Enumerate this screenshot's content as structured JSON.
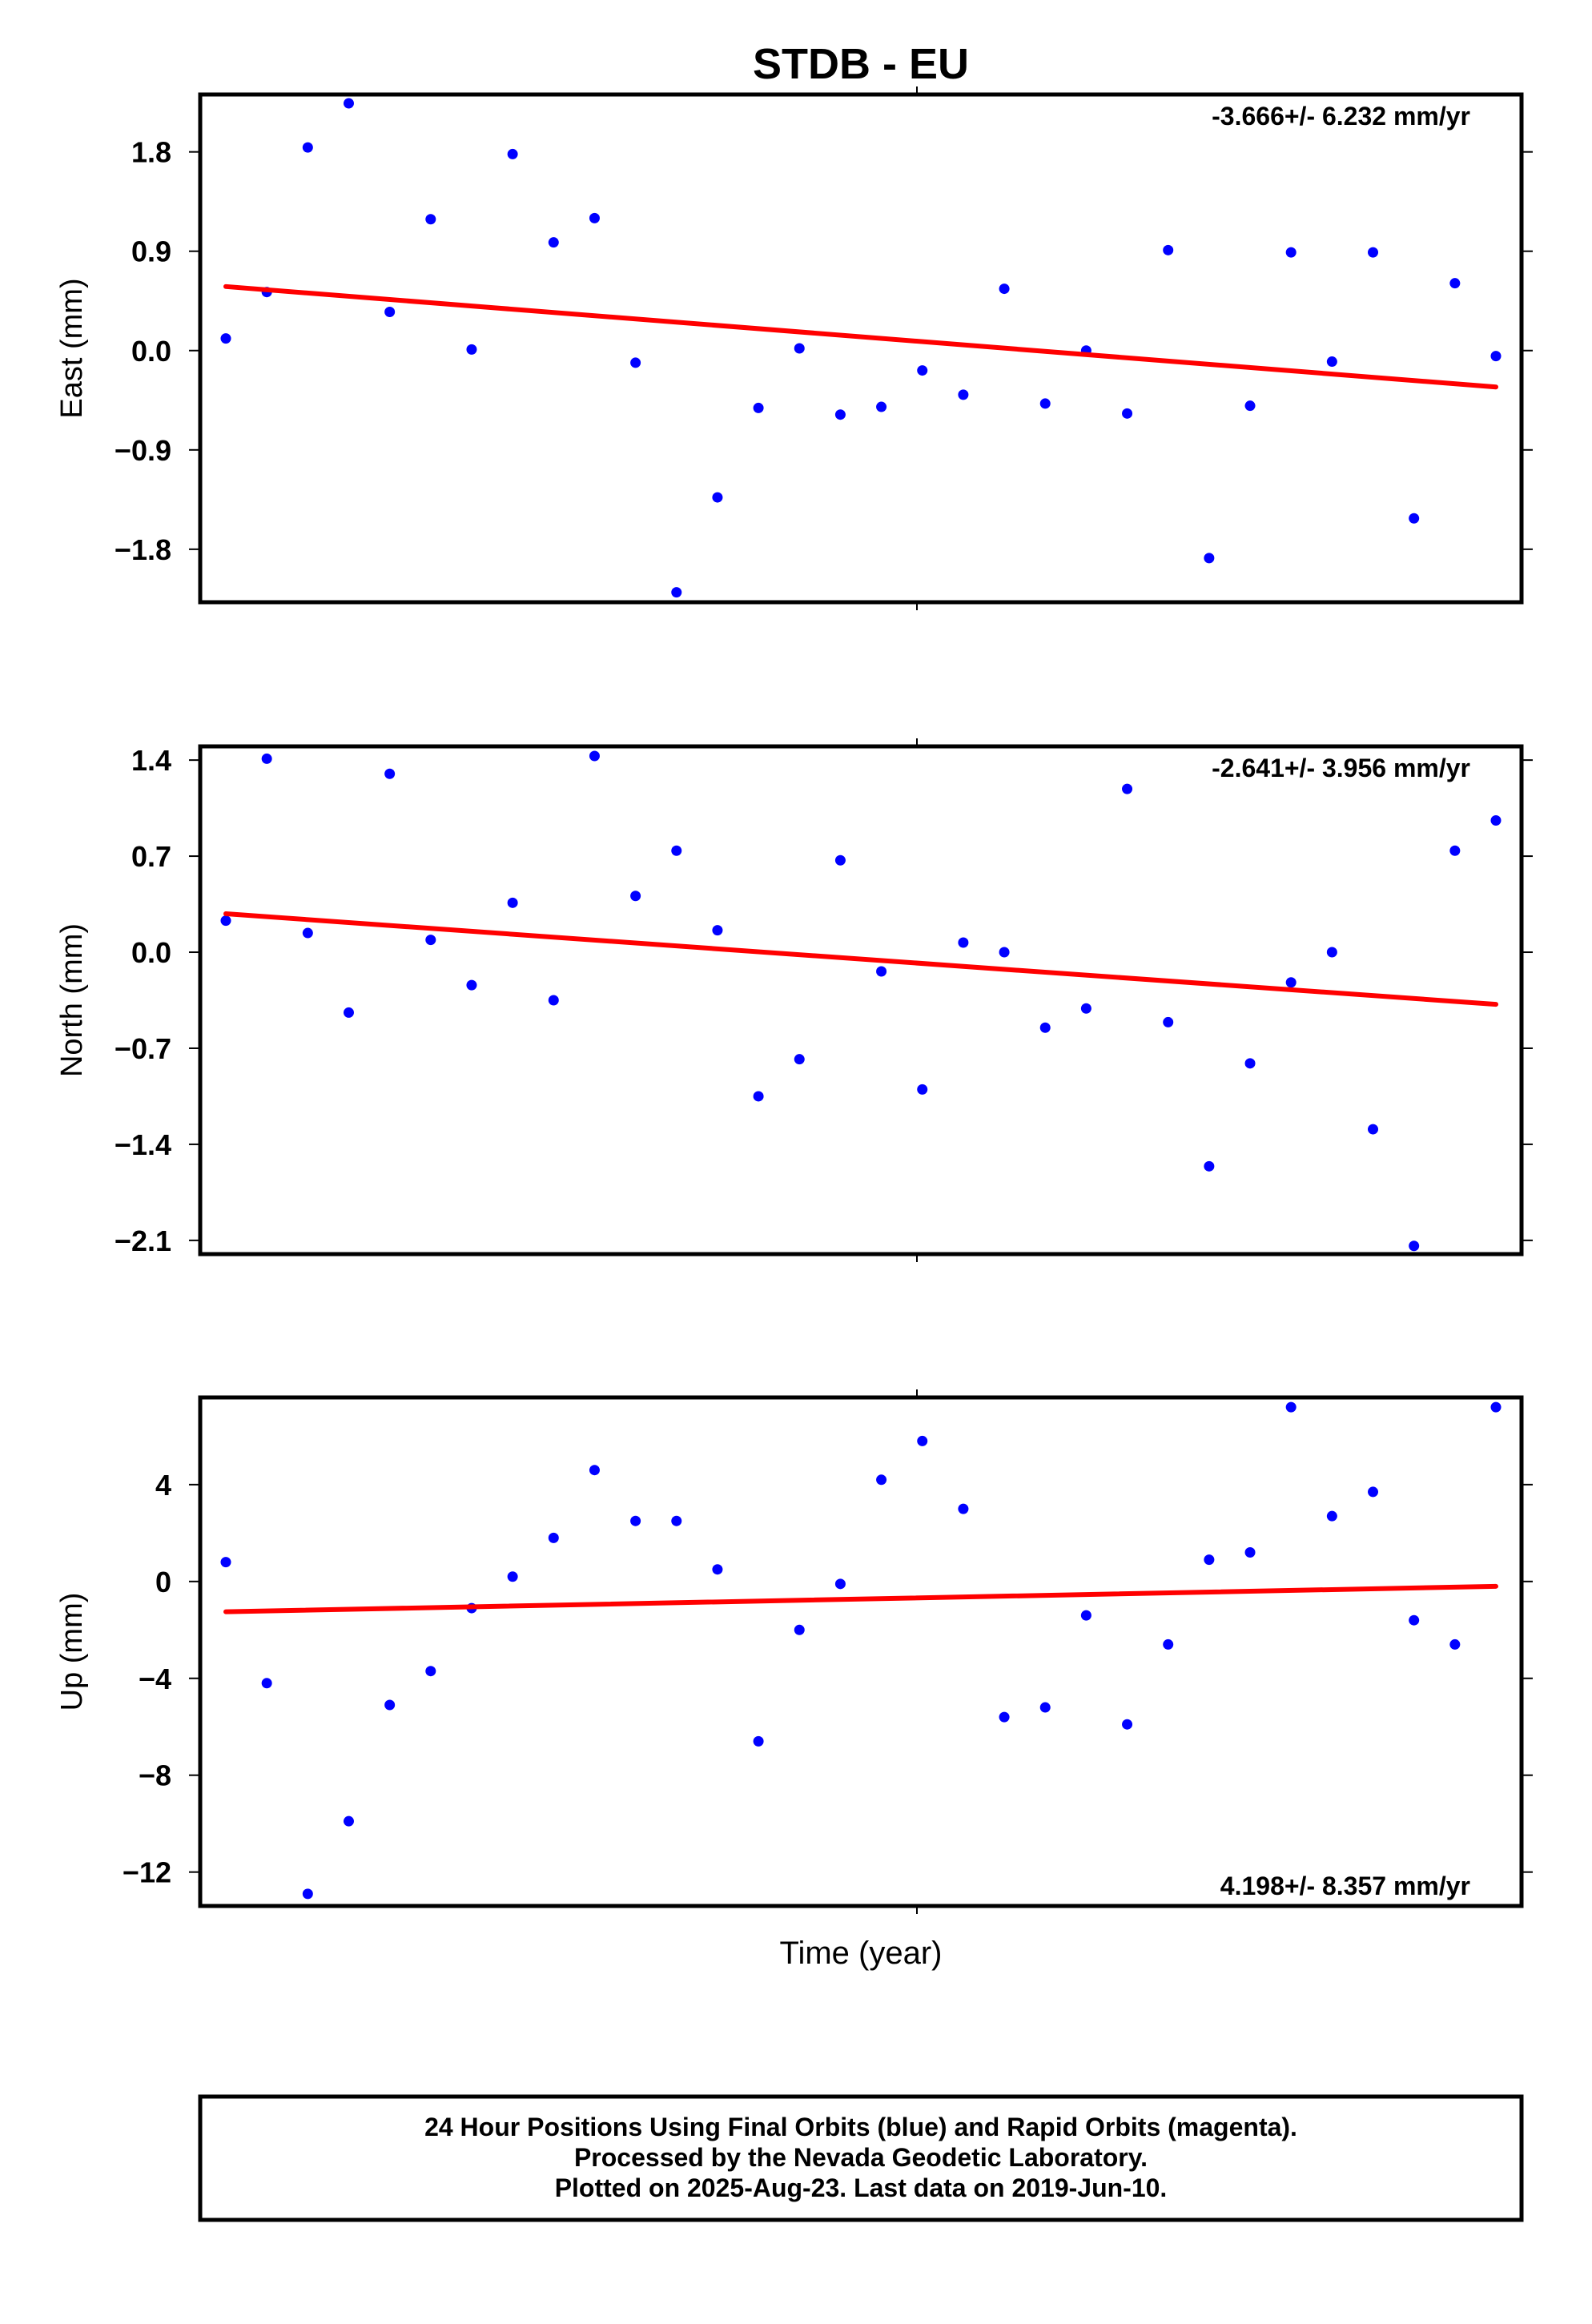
{
  "chart_data": {
    "type": "scatter",
    "title": "STDB - EU",
    "xlabel": "Time (year)",
    "point_color": "#0000ff",
    "trend_color": "#ff0000",
    "footer": [
      "24 Hour Positions Using Final Orbits (blue) and Rapid Orbits (magenta).",
      "Processed by the Nevada Geodetic Laboratory.",
      "Plotted on 2025-Aug-23. Last data on 2019-Jun-10."
    ],
    "panels": [
      {
        "ylabel": "East (mm)",
        "rate_label": "-3.666+/- 6.232 mm/yr",
        "rate_position": "top-right",
        "ylim": [
          -2.28,
          2.32
        ],
        "yticks": [
          1.8,
          0.9,
          0.0,
          -0.9,
          -1.8
        ],
        "ytick_labels": [
          "1.8",
          "0.9",
          "0.0",
          "−0.9",
          "−1.8"
        ],
        "trend": [
          0.58,
          -0.33
        ],
        "values": [
          0.11,
          0.53,
          1.84,
          2.24,
          0.35,
          1.19,
          0.01,
          1.78,
          0.98,
          1.2,
          -0.11,
          -2.19,
          -1.33,
          -0.52,
          0.02,
          -0.58,
          -0.51,
          -0.18,
          -0.4,
          0.56,
          -0.48,
          0.0,
          -0.57,
          0.91,
          -1.88,
          -0.5,
          0.89,
          -0.1,
          0.89,
          -1.52,
          0.61,
          -0.05
        ]
      },
      {
        "ylabel": "North (mm)",
        "rate_label": "-2.641+/- 3.956 mm/yr",
        "rate_position": "top-right",
        "ylim": [
          -2.2,
          1.5
        ],
        "yticks": [
          1.4,
          0.7,
          0.0,
          -0.7,
          -1.4,
          -2.1
        ],
        "ytick_labels": [
          "1.4",
          "0.7",
          "0.0",
          "−0.7",
          "−1.4",
          "−2.1"
        ],
        "trend": [
          0.28,
          -0.38
        ],
        "values": [
          0.23,
          1.41,
          0.14,
          -0.44,
          1.3,
          0.09,
          -0.24,
          0.36,
          -0.35,
          1.43,
          0.41,
          0.74,
          0.16,
          -1.05,
          -0.78,
          0.67,
          -0.14,
          -1.0,
          0.07,
          0.0,
          -0.55,
          -0.41,
          1.19,
          -0.51,
          -1.56,
          -0.81,
          -0.22,
          0.0,
          -1.29,
          -2.14,
          0.74,
          0.96
        ]
      },
      {
        "ylabel": "Up (mm)",
        "rate_label": "4.198+/- 8.357 mm/yr",
        "rate_position": "bottom-right",
        "ylim": [
          -13.4,
          7.6
        ],
        "yticks": [
          4,
          0,
          -4,
          -8,
          -12
        ],
        "ytick_labels": [
          "4",
          "0",
          "−4",
          "−8",
          "−12"
        ],
        "trend": [
          -1.25,
          -0.2
        ],
        "values": [
          0.8,
          -4.2,
          -12.9,
          -9.9,
          -5.1,
          -3.7,
          -1.1,
          0.2,
          1.8,
          4.6,
          2.5,
          2.5,
          0.5,
          -6.6,
          -2.0,
          -0.1,
          4.2,
          5.8,
          3.0,
          -5.6,
          -5.2,
          -1.4,
          -5.9,
          -2.6,
          0.9,
          1.2,
          7.2,
          2.7,
          3.7,
          -1.6,
          -2.6,
          7.2
        ]
      }
    ]
  }
}
